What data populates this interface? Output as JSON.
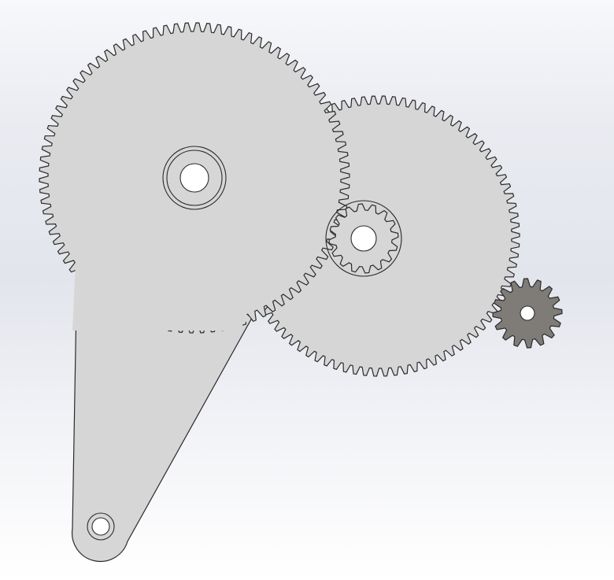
{
  "scene": {
    "kind": "gear-train-cad-model",
    "background_gradient": [
      "#f7f8fb",
      "#e2e5ec",
      "#ffffff"
    ]
  },
  "parts": [
    {
      "name": "crank-arm",
      "fill": "#d6d6d6",
      "stroke": "#2a2a2a"
    },
    {
      "name": "large-gear",
      "teeth": 90,
      "fill": "#d6d6d6",
      "stroke": "#2a2a2a"
    },
    {
      "name": "middle-gear",
      "teeth": 86,
      "fill": "#d6d6d6",
      "stroke": "#2a2a2a"
    },
    {
      "name": "center-pinion",
      "teeth": 16,
      "fill": "#d6d6d6",
      "stroke": "#2a2a2a"
    },
    {
      "name": "drive-pinion",
      "teeth": 16,
      "fill": "#7f7c78",
      "stroke": "#2a2a2a"
    }
  ]
}
